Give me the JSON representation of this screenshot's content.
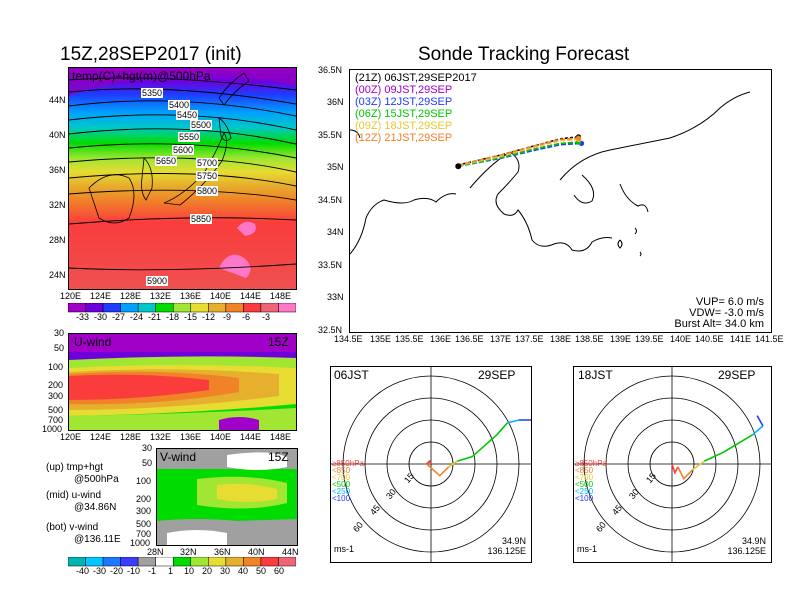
{
  "left": {
    "title": "15Z,28SEP2017 (init)",
    "map": {
      "subtitle": "temp(C)+hgt(m)@500hPa",
      "ytick_labels": [
        "44N",
        "40N",
        "36N",
        "32N",
        "28N",
        "24N"
      ],
      "xtick_labels": [
        "120E",
        "124E",
        "128E",
        "132E",
        "136E",
        "140E",
        "144E",
        "148E"
      ],
      "contour_labels": [
        "5350",
        "5400",
        "5450",
        "5500",
        "5550",
        "5600",
        "5650",
        "5700",
        "5750",
        "5800",
        "5850",
        "5900"
      ],
      "colorbar_labels": [
        "-33",
        "-30",
        "-27",
        "-24",
        "-21",
        "-18",
        "-15",
        "-12",
        "-9",
        "-6",
        "-3"
      ],
      "colorbar_colors": [
        "#a000c8",
        "#6e00dc",
        "#1e3cff",
        "#00a0ff",
        "#00c8c8",
        "#00dc00",
        "#a0e632",
        "#e6dc32",
        "#e6af2d",
        "#f08228",
        "#fa3c3c",
        "#f06478",
        "#ff78c8"
      ]
    },
    "uwind": {
      "label": "U-wind",
      "time": "15Z",
      "ytick_labels": [
        "30",
        "50",
        "100",
        "200",
        "300",
        "500",
        "700",
        "1000"
      ],
      "xtick_labels": [
        "120E",
        "124E",
        "128E",
        "132E",
        "136E",
        "140E",
        "144E",
        "148E"
      ]
    },
    "vwind": {
      "label": "V-wind",
      "time": "15Z",
      "ytick_labels": [
        "30",
        "50",
        "100",
        "200",
        "300",
        "500",
        "700",
        "1000"
      ],
      "xtick_labels": [
        "28N",
        "32N",
        "36N",
        "40N",
        "44N"
      ]
    },
    "notes": [
      {
        "key": "(up)",
        "lines": [
          "tmp+hgt",
          "@500hPa"
        ]
      },
      {
        "key": "(mid)",
        "lines": [
          "u-wind",
          "@34.86N"
        ]
      },
      {
        "key": "(bot)",
        "lines": [
          "v-wind",
          "@136.11E"
        ]
      }
    ],
    "wind_colorbar_labels": [
      "-40",
      "-30",
      "-20",
      "-10",
      "-1",
      "1",
      "10",
      "20",
      "30",
      "40",
      "50",
      "60"
    ],
    "wind_colorbar_colors": [
      "#00b4b4",
      "#00c8ff",
      "#1e78ff",
      "#3c3cff",
      "#a0a0a0",
      "#ffffff",
      "#00dc00",
      "#a0e632",
      "#e6dc32",
      "#e6af2d",
      "#f08228",
      "#fa3c3c",
      "#f06478"
    ]
  },
  "right": {
    "title": "Sonde Tracking Forecast",
    "legend": [
      {
        "text": "(21Z)  06JST,29SEP2017",
        "color": "#000000"
      },
      {
        "text": "(00Z)  09JST,29SEP",
        "color": "#a000c8"
      },
      {
        "text": "(03Z)  12JST,29SEP",
        "color": "#1e3cff"
      },
      {
        "text": "(06Z)  15JST,29SEP",
        "color": "#00c800"
      },
      {
        "text": "(09Z)  18JST,29SEP",
        "color": "#e6c832"
      },
      {
        "text": "(12Z)  21JST,29SEP",
        "color": "#f08228"
      }
    ],
    "ytick_labels": [
      "36.5N",
      "36N",
      "35.5N",
      "35N",
      "34.5N",
      "34N",
      "33.5N",
      "33N",
      "32.5N"
    ],
    "xtick_labels": [
      "134.5E",
      "135E",
      "135.5E",
      "136E",
      "136.5E",
      "137E",
      "137.5E",
      "138E",
      "138.5E",
      "139E",
      "139.5E",
      "140E",
      "140.5E",
      "141E",
      "141.5E"
    ],
    "params": [
      "VUP=  6.0  m/s",
      "VDW= -3.0  m/s",
      "Burst Alt=  34.0  km"
    ]
  },
  "hodo1": {
    "time": "06JST",
    "date": "29SEP",
    "ring_labels": [
      "15",
      "30",
      "45",
      "60"
    ],
    "level_labels": [
      "≥850hPa",
      "<850",
      "<700",
      "<500",
      "<250",
      "<100"
    ],
    "level_colors": [
      "#fa3c3c",
      "#f08228",
      "#e6c832",
      "#00c800",
      "#00b4ff",
      "#1e3cff"
    ],
    "unit": "ms-1",
    "lat": "34.9N",
    "lon": "136.125E"
  },
  "hodo2": {
    "time": "18JST",
    "date": "29SEP",
    "ring_labels": [
      "15",
      "30",
      "45",
      "60"
    ],
    "level_labels": [
      "≥850hPa",
      "<850",
      "<700",
      "<500",
      "<250",
      "<100"
    ],
    "level_colors": [
      "#fa3c3c",
      "#f08228",
      "#e6c832",
      "#00c800",
      "#00b4ff",
      "#1e3cff"
    ],
    "unit": "ms-1",
    "lat": "34.9N",
    "lon": "136.125E"
  },
  "chart_data": [
    {
      "type": "line",
      "title": "Sonde Tracking Forecast",
      "xlim": [
        134.5,
        141.5
      ],
      "ylim": [
        32.5,
        36.5
      ],
      "series": [
        {
          "name": "(21Z)  06JST,29SEP2017",
          "x": [
            136.3,
            137.0,
            137.6,
            138.0,
            138.3
          ],
          "y": [
            35.05,
            35.2,
            35.35,
            35.45,
            35.48
          ]
        },
        {
          "name": "(00Z)  09JST,29SEP",
          "x": [
            136.3,
            137.0,
            137.6,
            138.0,
            138.3
          ],
          "y": [
            35.04,
            35.17,
            35.3,
            35.38,
            35.4
          ]
        },
        {
          "name": "(03Z)  12JST,29SEP",
          "x": [
            136.3,
            137.0,
            137.6,
            138.0,
            138.35
          ],
          "y": [
            35.03,
            35.15,
            35.28,
            35.36,
            35.38
          ]
        },
        {
          "name": "(06Z)  15JST,29SEP",
          "x": [
            136.3,
            137.0,
            137.6,
            138.0,
            138.3
          ],
          "y": [
            35.03,
            35.16,
            35.3,
            35.38,
            35.4
          ]
        },
        {
          "name": "(09Z)  18JST,29SEP",
          "x": [
            136.3,
            137.0,
            137.6,
            138.0,
            138.3
          ],
          "y": [
            35.04,
            35.18,
            35.33,
            35.42,
            35.44
          ]
        },
        {
          "name": "(12Z)  21JST,29SEP",
          "x": [
            136.3,
            137.0,
            137.6,
            138.0,
            138.3
          ],
          "y": [
            35.05,
            35.2,
            35.35,
            35.44,
            35.46
          ]
        }
      ]
    },
    {
      "type": "line",
      "title": "06JST 29SEP",
      "series": [
        {
          "name": "≥850hPa",
          "u": [
            0,
            -1,
            -3
          ],
          "v": [
            0,
            2,
            0
          ]
        },
        {
          "name": "<850",
          "u": [
            -3,
            6,
            12
          ],
          "v": [
            0,
            -8,
            -2
          ]
        },
        {
          "name": "<700",
          "u": [
            12,
            18
          ],
          "v": [
            -2,
            2
          ]
        },
        {
          "name": "<500",
          "u": [
            18,
            28,
            45,
            52
          ],
          "v": [
            2,
            5,
            20,
            28
          ]
        },
        {
          "name": "<250",
          "u": [
            52,
            60
          ],
          "v": [
            28,
            30
          ]
        },
        {
          "name": "<100",
          "u": [
            60,
            72
          ],
          "v": [
            30,
            30
          ]
        }
      ]
    },
    {
      "type": "line",
      "title": "18JST 29SEP",
      "series": [
        {
          "name": "≥850hPa",
          "u": [
            0,
            2,
            4
          ],
          "v": [
            0,
            -6,
            -2
          ]
        },
        {
          "name": "<850",
          "u": [
            4,
            8,
            14
          ],
          "v": [
            -2,
            -10,
            -4
          ]
        },
        {
          "name": "<700",
          "u": [
            14,
            22
          ],
          "v": [
            -4,
            2
          ]
        },
        {
          "name": "<500",
          "u": [
            22,
            35,
            55
          ],
          "v": [
            2,
            8,
            20
          ]
        },
        {
          "name": "<250",
          "u": [
            55,
            62
          ],
          "v": [
            20,
            26
          ]
        },
        {
          "name": "<100",
          "u": [
            62,
            58
          ],
          "v": [
            26,
            33
          ]
        }
      ]
    }
  ]
}
